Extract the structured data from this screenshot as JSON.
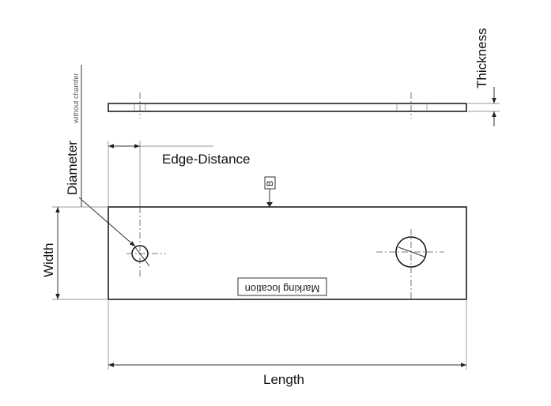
{
  "labels": {
    "thickness": "Thickness",
    "diameter": "Diameter",
    "without_chamfer": "without chamfer",
    "edge_distance": "Edge-Distance",
    "datum": "B",
    "width": "Width",
    "marking_location": "Marking location",
    "length": "Length"
  }
}
